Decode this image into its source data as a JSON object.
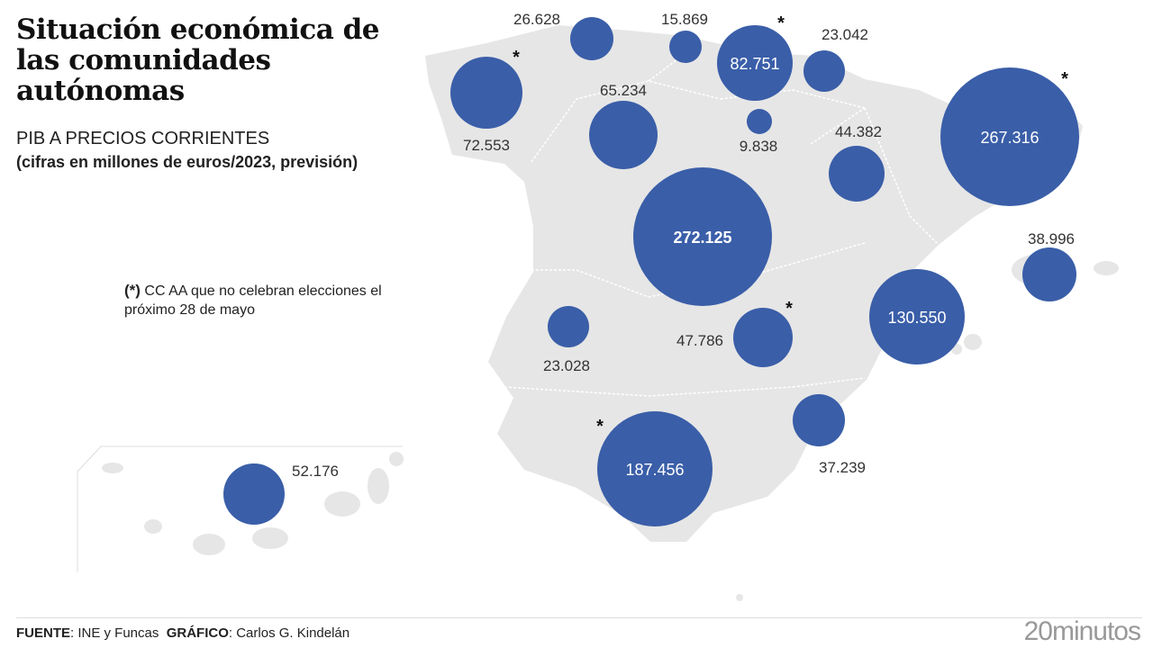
{
  "title": "Situación económica de las comunidades autónomas",
  "subtitle": "PIB A PRECIOS CORRIENTES",
  "subtitle2": "(cifras en millones de euros/2023, previsión)",
  "note": {
    "mark": "(*)",
    "text": " CC AA que no celebran elecciones el próximo 28 de mayo"
  },
  "footer": {
    "source_label": "FUENTE",
    "source": ": INE y Funcas",
    "credit_label": "GRÁFICO",
    "credit": ": Carlos G. Kindelán"
  },
  "logo": "20minutos",
  "colors": {
    "bubble": "#3a5ea8",
    "land": "#e6e6e6",
    "border": "#ffffff"
  },
  "bubbles": [
    {
      "value": "72.553",
      "asterisk": true
    },
    {
      "value": "26.628",
      "asterisk": false
    },
    {
      "value": "15.869",
      "asterisk": false
    },
    {
      "value": "82.751",
      "asterisk": true
    },
    {
      "value": "23.042",
      "asterisk": false
    },
    {
      "value": "65.234",
      "asterisk": false
    },
    {
      "value": "9.838",
      "asterisk": false
    },
    {
      "value": "44.382",
      "asterisk": false
    },
    {
      "value": "267.316",
      "asterisk": true
    },
    {
      "value": "272.125",
      "asterisk": false
    },
    {
      "value": "38.996",
      "asterisk": false
    },
    {
      "value": "130.550",
      "asterisk": false
    },
    {
      "value": "23.028",
      "asterisk": false
    },
    {
      "value": "47.786",
      "asterisk": true
    },
    {
      "value": "37.239",
      "asterisk": false
    },
    {
      "value": "187.456",
      "asterisk": true
    },
    {
      "value": "52.176",
      "asterisk": false
    }
  ]
}
